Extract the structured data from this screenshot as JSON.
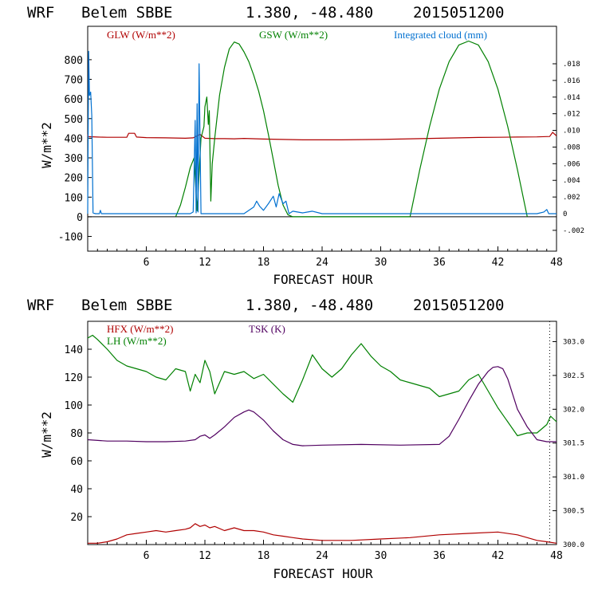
{
  "chart_data": [
    {
      "type": "line",
      "title": {
        "model": "WRF",
        "station": "Belem SBBE",
        "coords": "1.380, -48.480",
        "date": "2015051200"
      },
      "xlabel": "FORECAST HOUR",
      "ylabel": "W/m**2",
      "xlim": [
        0,
        48
      ],
      "ylim": [
        -175,
        970
      ],
      "xticks": [
        6,
        12,
        18,
        24,
        30,
        36,
        42,
        48
      ],
      "yticks": [
        -100,
        0,
        100,
        200,
        300,
        400,
        500,
        600,
        700,
        800
      ],
      "ylabel2": "Integrated cloud (mm)",
      "ylim2": [
        -0.0045,
        0.0225
      ],
      "yticks2": [
        -0.002,
        0.0,
        0.002,
        0.004,
        0.006,
        0.008,
        0.01,
        0.012,
        0.014,
        0.016,
        0.018
      ],
      "yticks2_labels": [
        "-.002",
        "0",
        ".002",
        ".004",
        ".006",
        ".008",
        ".010",
        ".012",
        ".014",
        ".016",
        ".018"
      ],
      "zero_line": true,
      "series": [
        {
          "name": "GLW (W/m**2)",
          "color": "#b00000",
          "axis": "left",
          "x": [
            0,
            0.05,
            1,
            2,
            3,
            4,
            4.2,
            4.8,
            5,
            6,
            8,
            10,
            10.8,
            11.5,
            12,
            13,
            14,
            15,
            16,
            18,
            20,
            22,
            24,
            26,
            28,
            30,
            32,
            34,
            36,
            38,
            40,
            42,
            44,
            46,
            47.3,
            47.6,
            48
          ],
          "y": [
            420,
            408,
            406,
            405,
            405,
            405,
            425,
            425,
            406,
            403,
            402,
            400,
            402,
            420,
            400,
            398,
            398,
            397,
            399,
            396,
            394,
            392,
            392,
            392,
            393,
            394,
            396,
            398,
            400,
            402,
            404,
            405,
            406,
            407,
            409,
            430,
            412
          ]
        },
        {
          "name": "GSW (W/m**2)",
          "color": "#008000",
          "axis": "left",
          "x": [
            9,
            9.5,
            10,
            10.5,
            10.9,
            11.2,
            11.6,
            11.9,
            12,
            12.2,
            12.35,
            12.45,
            12.6,
            12.75,
            13,
            13.5,
            14,
            14.5,
            15,
            15.5,
            16,
            16.5,
            17,
            17.5,
            18,
            18.5,
            19,
            19.5,
            20,
            20.5,
            21,
            33,
            34,
            35,
            36,
            37,
            38,
            39,
            40,
            41,
            42,
            43,
            44,
            45
          ],
          "y": [
            0,
            60,
            150,
            250,
            300,
            30,
            400,
            460,
            560,
            610,
            470,
            540,
            80,
            270,
            400,
            620,
            760,
            855,
            890,
            880,
            840,
            790,
            720,
            640,
            540,
            420,
            290,
            160,
            60,
            10,
            0,
            0,
            240,
            460,
            650,
            790,
            875,
            895,
            875,
            790,
            650,
            460,
            240,
            0
          ]
        },
        {
          "name": "Integrated cloud (mm)",
          "color": "#0070d0",
          "axis": "right",
          "x": [
            0,
            0.1,
            0.18,
            0.3,
            0.42,
            0.55,
            0.8,
            1.2,
            1.3,
            1.4,
            2,
            10.5,
            10.8,
            11.0,
            11.1,
            11.2,
            11.3,
            11.4,
            11.6,
            12,
            16,
            17,
            17.3,
            17.6,
            18,
            18.5,
            19,
            19.3,
            19.6,
            20,
            20.3,
            20.6,
            21,
            22,
            23,
            24,
            30,
            35,
            40,
            46,
            46.7,
            47,
            47.2,
            48
          ],
          "y": [
            0,
            0.0195,
            0.0142,
            0.0146,
            0.0118,
            0.0001,
            0,
            0,
            0.0004,
            0,
            0,
            0,
            0.0002,
            0.0112,
            0.0001,
            0.0132,
            0.0002,
            0.018,
            0,
            0,
            0,
            0.0008,
            0.0015,
            0.0009,
            0.0004,
            0.0012,
            0.0021,
            0.0008,
            0.0024,
            0.0012,
            0.0015,
            0,
            0.0003,
            0.0001,
            0.0003,
            0,
            0,
            0,
            0,
            0,
            0.0002,
            0.0005,
            0,
            0
          ]
        }
      ]
    },
    {
      "type": "line",
      "title": {
        "model": "WRF",
        "station": "Belem SBBE",
        "coords": "1.380, -48.480",
        "date": "2015051200"
      },
      "xlabel": "FORECAST HOUR",
      "ylabel": "W/m**2",
      "xlim": [
        0,
        48
      ],
      "ylim": [
        0,
        160
      ],
      "xticks": [
        6,
        12,
        18,
        24,
        30,
        36,
        42,
        48
      ],
      "yticks": [
        20,
        40,
        60,
        80,
        100,
        120,
        140
      ],
      "ylabel2": "TSK (K)",
      "ylim2": [
        300.0,
        303.3
      ],
      "yticks2": [
        300.0,
        300.5,
        301.0,
        301.5,
        302.0,
        302.5,
        303.0
      ],
      "yticks2_labels": [
        "300.0",
        "300.5",
        "301.0",
        "301.5",
        "302.0",
        "302.5",
        "303.0"
      ],
      "series": [
        {
          "name": "HFX (W/m**2)",
          "color": "#b00000",
          "axis": "left",
          "x": [
            0,
            1,
            2,
            3,
            4,
            5,
            6,
            7,
            8,
            9,
            10,
            10.5,
            11,
            11.5,
            12,
            12.5,
            13,
            14,
            15,
            16,
            17,
            18,
            19,
            20,
            21,
            22,
            24,
            27,
            30,
            33,
            36,
            39,
            42,
            44,
            45,
            46,
            47,
            48
          ],
          "y": [
            1,
            1,
            2,
            4,
            7,
            8,
            9,
            10,
            9,
            10,
            11,
            12,
            15,
            13,
            14,
            12,
            13,
            10,
            12,
            10,
            10,
            9,
            7,
            6,
            5,
            4,
            3,
            3,
            4,
            5,
            7,
            8,
            9,
            7,
            5,
            3,
            2,
            1
          ]
        },
        {
          "name": "LH (W/m**2)",
          "color": "#008000",
          "axis": "left",
          "x": [
            0,
            0.5,
            1,
            2,
            3,
            4,
            5,
            6,
            7,
            8,
            9,
            10,
            10.5,
            11,
            11.5,
            12,
            12.5,
            13,
            14,
            15,
            16,
            17,
            18,
            19,
            20,
            21,
            22,
            23,
            24,
            25,
            26,
            27,
            28,
            29,
            30,
            31,
            32,
            33,
            34,
            35,
            36,
            37,
            38,
            39,
            40,
            41,
            42,
            43,
            44,
            45,
            46,
            47,
            47.4,
            48
          ],
          "y": [
            148,
            150,
            147,
            140,
            132,
            128,
            126,
            124,
            120,
            118,
            126,
            124,
            110,
            122,
            116,
            132,
            124,
            108,
            124,
            122,
            124,
            119,
            122,
            115,
            108,
            102,
            118,
            136,
            126,
            120,
            126,
            136,
            144,
            135,
            128,
            124,
            118,
            116,
            114,
            112,
            106,
            108,
            110,
            118,
            122,
            110,
            98,
            88,
            78,
            80,
            80,
            86,
            92,
            88
          ]
        },
        {
          "name": "TSK (K)",
          "color": "#500060",
          "axis": "right",
          "x": [
            0,
            2,
            4,
            6,
            8,
            10,
            11,
            11.5,
            12,
            12.5,
            13,
            14,
            15,
            16,
            16.5,
            17,
            18,
            19,
            20,
            21,
            22,
            24,
            28,
            32,
            36,
            37,
            38,
            39,
            40,
            41,
            41.5,
            42,
            42.5,
            43,
            44,
            45,
            46,
            47,
            48
          ],
          "y": [
            301.55,
            301.53,
            301.53,
            301.52,
            301.52,
            301.53,
            301.55,
            301.6,
            301.62,
            301.57,
            301.62,
            301.74,
            301.88,
            301.96,
            301.99,
            301.96,
            301.84,
            301.68,
            301.55,
            301.48,
            301.46,
            301.47,
            301.48,
            301.47,
            301.48,
            301.6,
            301.85,
            302.12,
            302.37,
            302.56,
            302.62,
            302.63,
            302.6,
            302.45,
            302.0,
            301.74,
            301.55,
            301.52,
            301.52
          ]
        }
      ]
    }
  ]
}
